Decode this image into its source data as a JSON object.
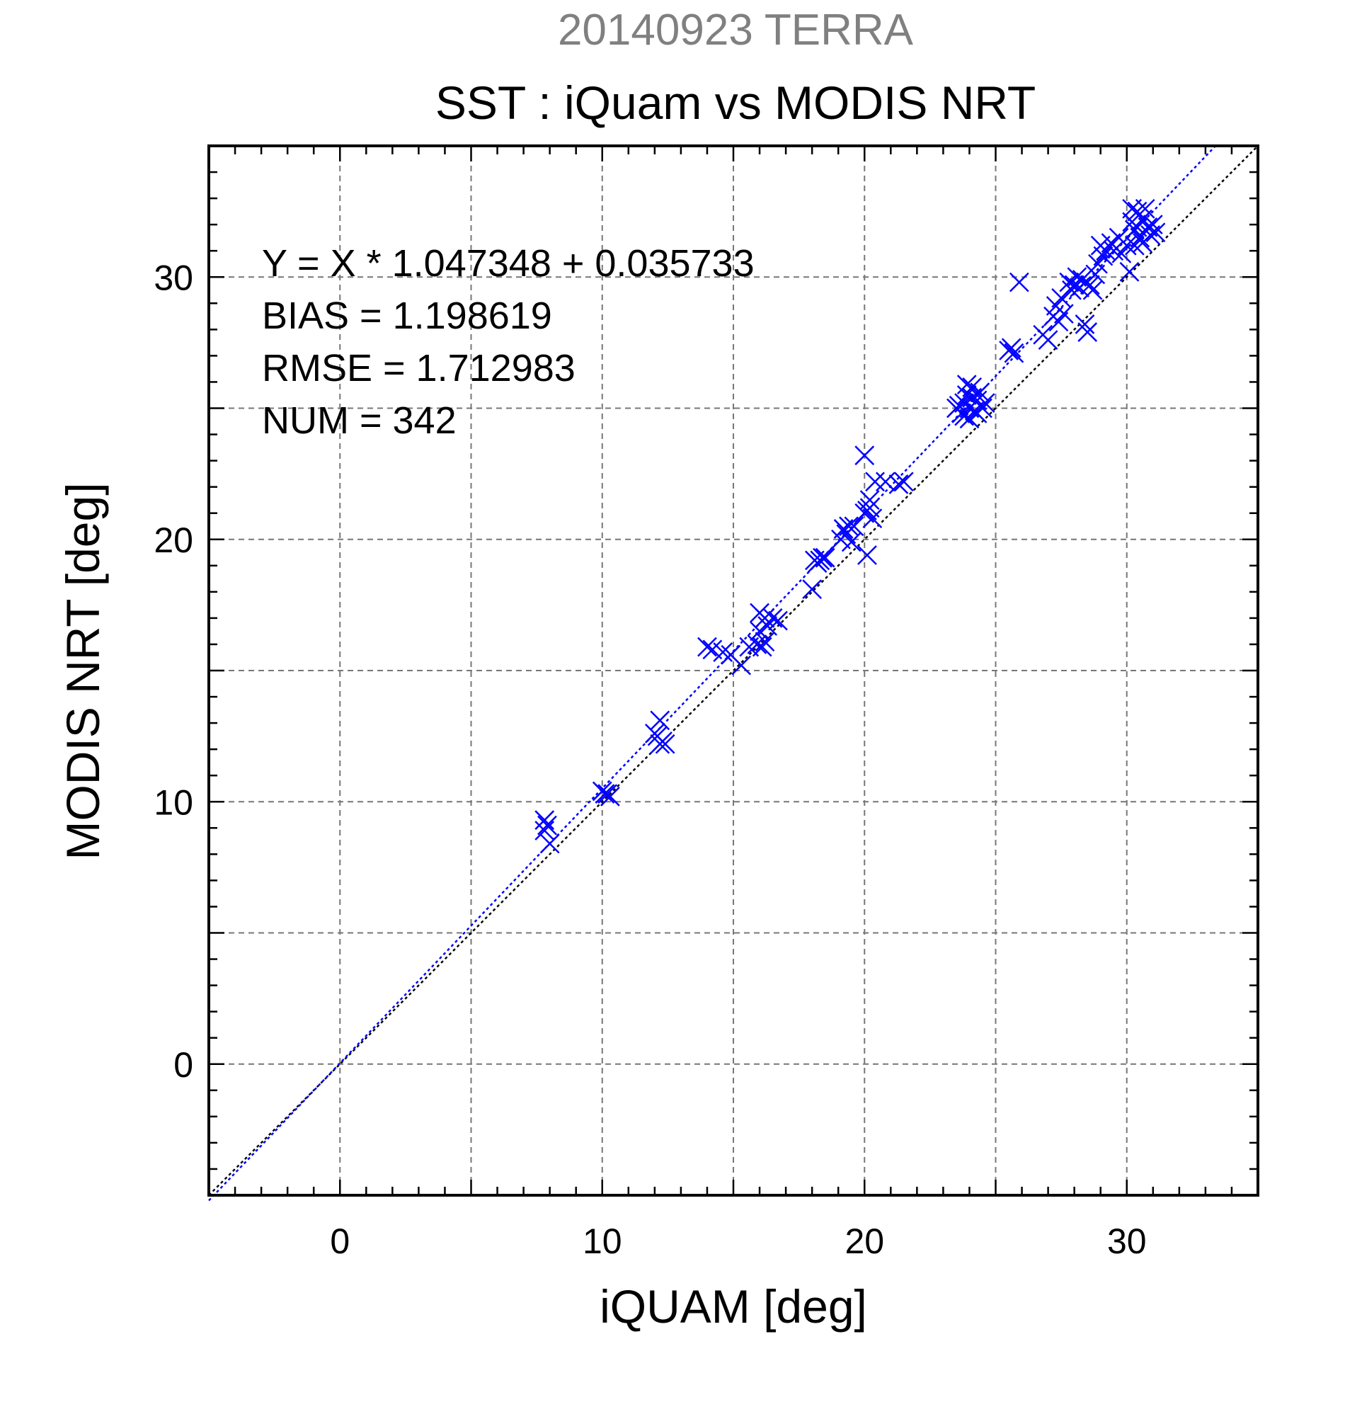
{
  "chart_data": {
    "type": "scatter",
    "title": "20140923 TERRA",
    "subtitle": "SST : iQuam vs MODIS NRT",
    "xlabel": "iQUAM [deg]",
    "ylabel": "MODIS NRT [deg]",
    "xlim": [
      -5,
      35
    ],
    "ylim": [
      -5,
      35
    ],
    "x_ticks": [
      0,
      10,
      20,
      30
    ],
    "y_ticks": [
      0,
      10,
      20,
      30
    ],
    "grid": true,
    "marker": "x",
    "colors": {
      "points": "#0000ff",
      "fit_line": "#0000ff",
      "identity_line": "#000000"
    },
    "stats": [
      "Y = X * 1.047348 + 0.035733",
      "BIAS = 1.198619",
      "RMSE = 1.712983",
      "NUM = 342"
    ],
    "fit": {
      "slope": 1.047348,
      "intercept": 0.035733
    },
    "points": [
      [
        7.8,
        9.3
      ],
      [
        7.8,
        8.9
      ],
      [
        8.0,
        8.4
      ],
      [
        7.9,
        9.1
      ],
      [
        10.1,
        10.3
      ],
      [
        10.2,
        10.3
      ],
      [
        10.0,
        10.4
      ],
      [
        10.3,
        10.2
      ],
      [
        12.0,
        12.6
      ],
      [
        12.2,
        12.2
      ],
      [
        12.3,
        12.3
      ],
      [
        12.1,
        12.5
      ],
      [
        12.2,
        13.1
      ],
      [
        12.4,
        12.2
      ],
      [
        14.0,
        15.9
      ],
      [
        14.2,
        15.8
      ],
      [
        14.6,
        15.7
      ],
      [
        14.9,
        15.6
      ],
      [
        15.3,
        15.2
      ],
      [
        15.6,
        15.9
      ],
      [
        15.9,
        16.0
      ],
      [
        16.1,
        15.9
      ],
      [
        16.0,
        16.5
      ],
      [
        16.2,
        17.0
      ],
      [
        16.0,
        17.2
      ],
      [
        16.2,
        16.1
      ],
      [
        16.3,
        16.7
      ],
      [
        16.5,
        17.0
      ],
      [
        16.7,
        16.9
      ],
      [
        18.0,
        18.1
      ],
      [
        18.1,
        19.2
      ],
      [
        18.3,
        19.2
      ],
      [
        18.4,
        19.3
      ],
      [
        18.5,
        19.3
      ],
      [
        18.2,
        19.1
      ],
      [
        19.1,
        20.0
      ],
      [
        19.2,
        20.4
      ],
      [
        19.4,
        20.5
      ],
      [
        19.3,
        20.2
      ],
      [
        19.5,
        19.9
      ],
      [
        19.6,
        20.5
      ],
      [
        20.0,
        21.0
      ],
      [
        20.1,
        21.1
      ],
      [
        20.2,
        21.5
      ],
      [
        20.3,
        20.8
      ],
      [
        20.0,
        23.2
      ],
      [
        20.1,
        19.4
      ],
      [
        20.4,
        22.2
      ],
      [
        20.8,
        22.2
      ],
      [
        21.3,
        22.1
      ],
      [
        21.5,
        22.2
      ],
      [
        20.2,
        21.2
      ],
      [
        23.5,
        25.0
      ],
      [
        23.7,
        24.8
      ],
      [
        23.8,
        25.2
      ],
      [
        23.9,
        25.5
      ],
      [
        24.0,
        25.0
      ],
      [
        24.1,
        25.8
      ],
      [
        24.2,
        24.9
      ],
      [
        24.3,
        25.3
      ],
      [
        24.0,
        24.6
      ],
      [
        23.6,
        25.1
      ],
      [
        24.4,
        25.6
      ],
      [
        24.5,
        25.0
      ],
      [
        23.8,
        24.7
      ],
      [
        24.1,
        25.4
      ],
      [
        24.3,
        24.8
      ],
      [
        24.6,
        25.2
      ],
      [
        23.9,
        25.9
      ],
      [
        25.5,
        27.2
      ],
      [
        25.6,
        27.3
      ],
      [
        25.7,
        27.1
      ],
      [
        25.9,
        29.8
      ],
      [
        26.8,
        27.8
      ],
      [
        27.0,
        27.6
      ],
      [
        27.2,
        28.5
      ],
      [
        27.3,
        28.9
      ],
      [
        27.4,
        28.3
      ],
      [
        27.5,
        29.2
      ],
      [
        27.6,
        28.6
      ],
      [
        27.8,
        29.8
      ],
      [
        27.9,
        29.5
      ],
      [
        28.0,
        29.7
      ],
      [
        28.1,
        30.0
      ],
      [
        28.2,
        29.6
      ],
      [
        28.4,
        28.2
      ],
      [
        28.5,
        27.9
      ],
      [
        28.3,
        29.9
      ],
      [
        28.6,
        29.7
      ],
      [
        28.7,
        29.5
      ],
      [
        28.8,
        30.1
      ],
      [
        28.9,
        30.5
      ],
      [
        29.0,
        31.2
      ],
      [
        29.1,
        30.8
      ],
      [
        29.2,
        31.0
      ],
      [
        29.4,
        31.3
      ],
      [
        29.5,
        31.0
      ],
      [
        29.7,
        31.5
      ],
      [
        29.8,
        30.9
      ],
      [
        30.0,
        31.2
      ],
      [
        30.1,
        30.2
      ],
      [
        30.2,
        32.1
      ],
      [
        30.3,
        31.8
      ],
      [
        30.4,
        32.5
      ],
      [
        30.5,
        31.5
      ],
      [
        30.6,
        32.2
      ],
      [
        30.7,
        32.6
      ],
      [
        30.8,
        31.9
      ],
      [
        30.9,
        31.6
      ],
      [
        31.0,
        32.0
      ],
      [
        30.3,
        31.2
      ],
      [
        30.6,
        31.3
      ],
      [
        31.1,
        31.7
      ],
      [
        30.2,
        32.6
      ],
      [
        30.4,
        31.9
      ]
    ]
  }
}
